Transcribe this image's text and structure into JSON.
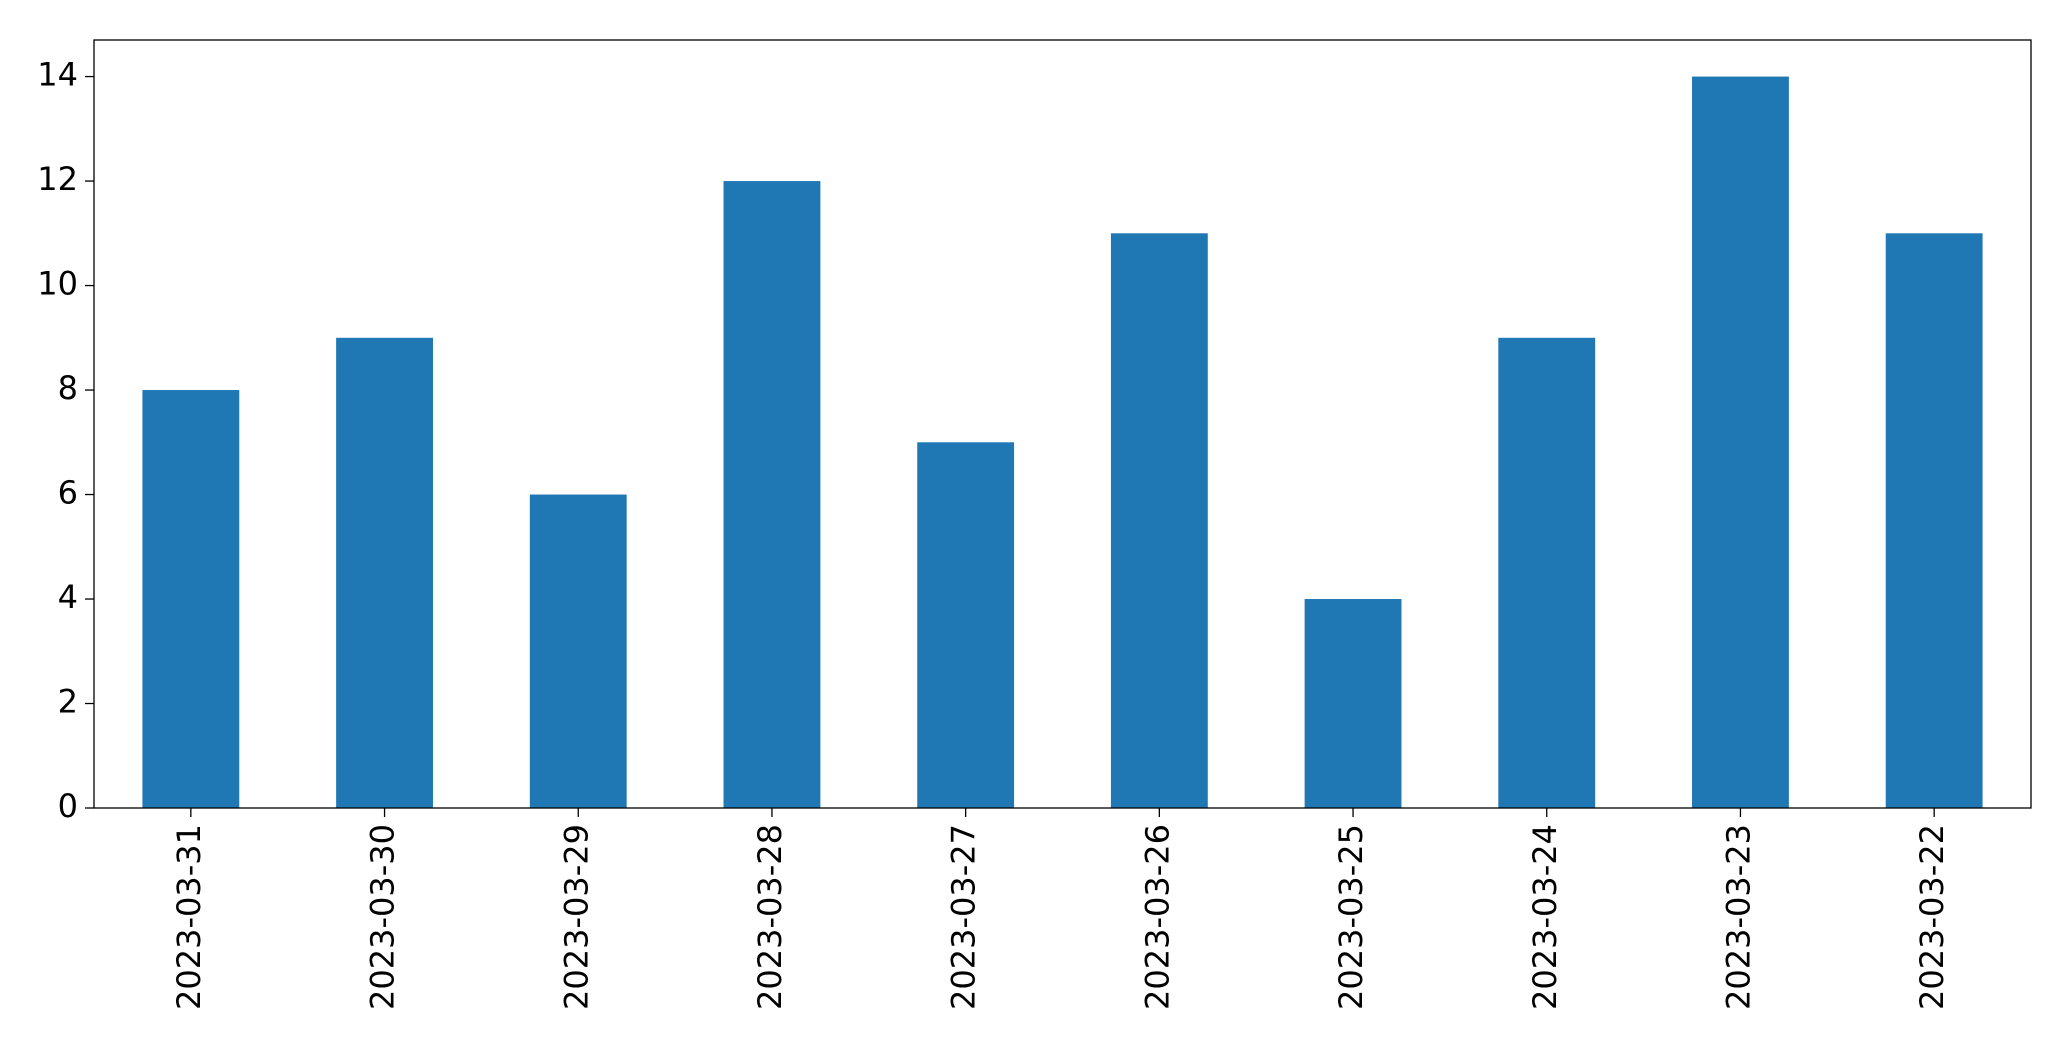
{
  "chart_data": {
    "type": "bar",
    "categories": [
      "2023-03-31",
      "2023-03-30",
      "2023-03-29",
      "2023-03-28",
      "2023-03-27",
      "2023-03-26",
      "2023-03-25",
      "2023-03-24",
      "2023-03-23",
      "2023-03-22"
    ],
    "values": [
      8,
      9,
      6,
      12,
      7,
      11,
      4,
      9,
      14,
      11
    ],
    "color": "#1f77b4",
    "ylim": [
      0,
      14.7
    ],
    "yticks": [
      0,
      2,
      4,
      6,
      8,
      10,
      12,
      14
    ],
    "grid": false
  }
}
